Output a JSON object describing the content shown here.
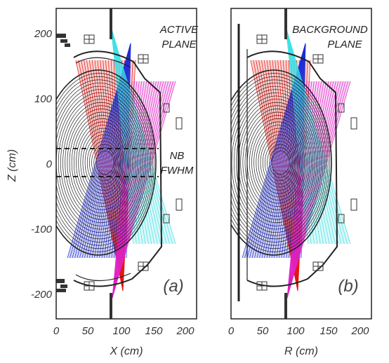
{
  "panels": [
    {
      "id": "a",
      "label": "(a)",
      "title_lines": [
        "ACTIVE",
        "PLANE"
      ],
      "annotation_lines": [
        "NB",
        "FWHM"
      ],
      "xlabel": "X (cm)",
      "xticks": [
        "0",
        "50",
        "100",
        "150",
        "200"
      ]
    },
    {
      "id": "b",
      "label": "(b)",
      "title_lines": [
        "BACKGROUND",
        "PLANE"
      ],
      "xlabel": "R (cm)",
      "xticks": [
        "0",
        "50",
        "100",
        "150",
        "200"
      ]
    }
  ],
  "ylabel": "Z (cm)",
  "yticks": [
    "200",
    "100",
    "0",
    "-100",
    "-200"
  ],
  "colors": {
    "red_fan": "#e8140e",
    "blue_fan": "#1f2ed8",
    "magenta_fan": "#e021c8",
    "cyan_fan": "#3ee0e6",
    "flux_surface": "#222222",
    "frame": "#222222"
  }
}
